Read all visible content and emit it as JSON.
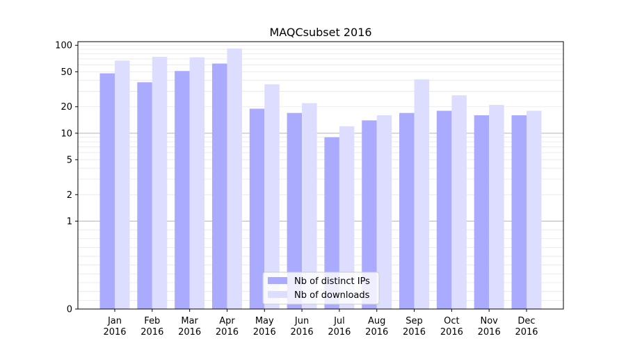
{
  "chart_data": {
    "type": "bar",
    "title": "MAQCsubset 2016",
    "xlabel": "",
    "ylabel": "",
    "yscale": "symlog",
    "ylim": [
      0,
      110
    ],
    "yticks": [
      0,
      1,
      2,
      5,
      10,
      20,
      50,
      100
    ],
    "categories": [
      [
        "Jan",
        "2016"
      ],
      [
        "Feb",
        "2016"
      ],
      [
        "Mar",
        "2016"
      ],
      [
        "Apr",
        "2016"
      ],
      [
        "May",
        "2016"
      ],
      [
        "Jun",
        "2016"
      ],
      [
        "Jul",
        "2016"
      ],
      [
        "Aug",
        "2016"
      ],
      [
        "Sep",
        "2016"
      ],
      [
        "Oct",
        "2016"
      ],
      [
        "Nov",
        "2016"
      ],
      [
        "Dec",
        "2016"
      ]
    ],
    "series": [
      {
        "name": "Nb of distinct IPs",
        "color": "#aaaaff",
        "values": [
          48,
          38,
          51,
          62,
          19,
          17,
          9,
          14,
          17,
          18,
          16,
          16
        ]
      },
      {
        "name": "Nb of downloads",
        "color": "#ddddff",
        "values": [
          67,
          74,
          73,
          92,
          36,
          22,
          12,
          16,
          41,
          27,
          21,
          18
        ]
      }
    ],
    "legend": "lower-center",
    "grid": true
  }
}
